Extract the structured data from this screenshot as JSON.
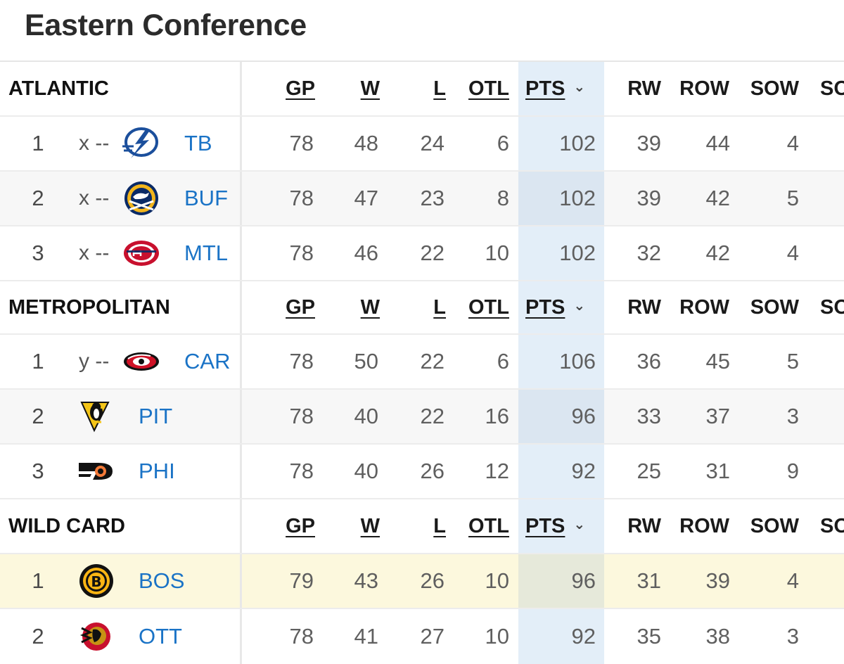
{
  "page": {
    "title": "Eastern Conference"
  },
  "columns": [
    "GP",
    "W",
    "L",
    "OTL",
    "PTS",
    "RW",
    "ROW",
    "SOW",
    "SO"
  ],
  "sort_indicator": "chevron-down-icon",
  "colors": {
    "link": "#1a73c6",
    "sorted_column": "#e3eef8",
    "highlight_row": "#fcf8dd"
  },
  "sections": [
    {
      "division": "ATLANTIC",
      "rows": [
        {
          "rank": "1",
          "clinch": "x --",
          "team": "TB",
          "logo": "lightning-logo",
          "gp": "78",
          "w": "48",
          "l": "24",
          "otl": "6",
          "pts": "102",
          "rw": "39",
          "row": "44",
          "sow": "4"
        },
        {
          "rank": "2",
          "clinch": "x --",
          "team": "BUF",
          "logo": "sabres-logo",
          "gp": "78",
          "w": "47",
          "l": "23",
          "otl": "8",
          "pts": "102",
          "rw": "39",
          "row": "42",
          "sow": "5"
        },
        {
          "rank": "3",
          "clinch": "x --",
          "team": "MTL",
          "logo": "canadiens-logo",
          "gp": "78",
          "w": "46",
          "l": "22",
          "otl": "10",
          "pts": "102",
          "rw": "32",
          "row": "42",
          "sow": "4"
        }
      ]
    },
    {
      "division": "METROPOLITAN",
      "rows": [
        {
          "rank": "1",
          "clinch": "y --",
          "team": "CAR",
          "logo": "hurricanes-logo",
          "gp": "78",
          "w": "50",
          "l": "22",
          "otl": "6",
          "pts": "106",
          "rw": "36",
          "row": "45",
          "sow": "5"
        },
        {
          "rank": "2",
          "clinch": "",
          "team": "PIT",
          "logo": "penguins-logo",
          "gp": "78",
          "w": "40",
          "l": "22",
          "otl": "16",
          "pts": "96",
          "rw": "33",
          "row": "37",
          "sow": "3"
        },
        {
          "rank": "3",
          "clinch": "",
          "team": "PHI",
          "logo": "flyers-logo",
          "gp": "78",
          "w": "40",
          "l": "26",
          "otl": "12",
          "pts": "92",
          "rw": "25",
          "row": "31",
          "sow": "9"
        }
      ]
    },
    {
      "division": "WILD CARD",
      "rows": [
        {
          "rank": "1",
          "clinch": "",
          "team": "BOS",
          "logo": "bruins-logo",
          "gp": "79",
          "w": "43",
          "l": "26",
          "otl": "10",
          "pts": "96",
          "rw": "31",
          "row": "39",
          "sow": "4"
        },
        {
          "rank": "2",
          "clinch": "",
          "team": "OTT",
          "logo": "senators-logo",
          "gp": "78",
          "w": "41",
          "l": "27",
          "otl": "10",
          "pts": "92",
          "rw": "35",
          "row": "38",
          "sow": "3"
        }
      ]
    }
  ]
}
